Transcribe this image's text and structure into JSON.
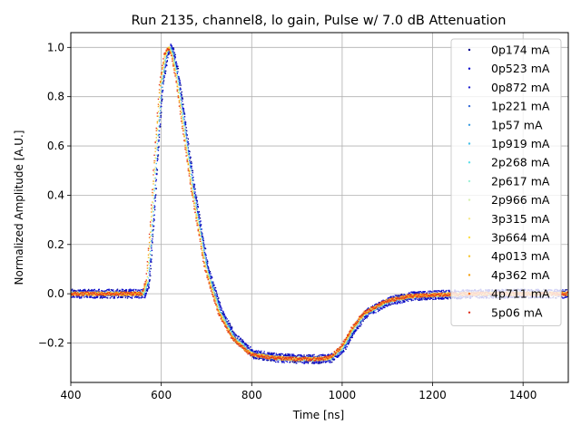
{
  "chart_data": {
    "type": "scatter",
    "title": "Run 2135, channel8, lo gain, Pulse w/ 7.0 dB Attenuation",
    "xlabel": "Time [ns]",
    "ylabel": "Normalized Amplitude [A.U.]",
    "xlim": [
      400,
      1500
    ],
    "ylim": [
      -0.36,
      1.06
    ],
    "xticks": [
      400,
      600,
      800,
      1000,
      1200,
      1400
    ],
    "xtick_labels": [
      "400",
      "600",
      "800",
      "1000",
      "1200",
      "1400"
    ],
    "yticks": [
      -0.2,
      0.0,
      0.2,
      0.4,
      0.6,
      0.8,
      1.0
    ],
    "ytick_labels": [
      "−0.2",
      "0.0",
      "0.2",
      "0.4",
      "0.6",
      "0.8",
      "1.0"
    ],
    "grid": true,
    "legend_position": "top-right",
    "pulse_shape": {
      "x": [
        400,
        560,
        570,
        580,
        590,
        600,
        610,
        618,
        625,
        635,
        650,
        670,
        700,
        730,
        760,
        800,
        850,
        900,
        950,
        975,
        1000,
        1025,
        1050,
        1100,
        1150,
        1200,
        1300,
        1400,
        1500
      ],
      "y": [
        0.0,
        0.0,
        0.05,
        0.3,
        0.6,
        0.85,
        0.97,
        1.0,
        0.97,
        0.88,
        0.68,
        0.42,
        0.1,
        -0.08,
        -0.18,
        -0.245,
        -0.26,
        -0.265,
        -0.265,
        -0.26,
        -0.22,
        -0.14,
        -0.08,
        -0.03,
        -0.01,
        -0.005,
        0.0,
        0.0,
        0.0
      ]
    },
    "series": [
      {
        "name": "0p174 mA",
        "color": "#00008b"
      },
      {
        "name": "0p523 mA",
        "color": "#0000cd"
      },
      {
        "name": "0p872 mA",
        "color": "#1f1fd0"
      },
      {
        "name": "1p221 mA",
        "color": "#3b6fd8"
      },
      {
        "name": "1p57 mA",
        "color": "#3b9de0"
      },
      {
        "name": "1p919 mA",
        "color": "#46c0e8"
      },
      {
        "name": "2p268 mA",
        "color": "#5fe0ea"
      },
      {
        "name": "2p617 mA",
        "color": "#9ef0d8"
      },
      {
        "name": "2p966 mA",
        "color": "#d8f0b0"
      },
      {
        "name": "3p315 mA",
        "color": "#f5e88a"
      },
      {
        "name": "3p664 mA",
        "color": "#fde047"
      },
      {
        "name": "4p013 mA",
        "color": "#f8c630"
      },
      {
        "name": "4p362 mA",
        "color": "#f59e0b"
      },
      {
        "name": "4p711 mA",
        "color": "#f26a1b"
      },
      {
        "name": "5p06 mA",
        "color": "#e0301e"
      }
    ]
  }
}
